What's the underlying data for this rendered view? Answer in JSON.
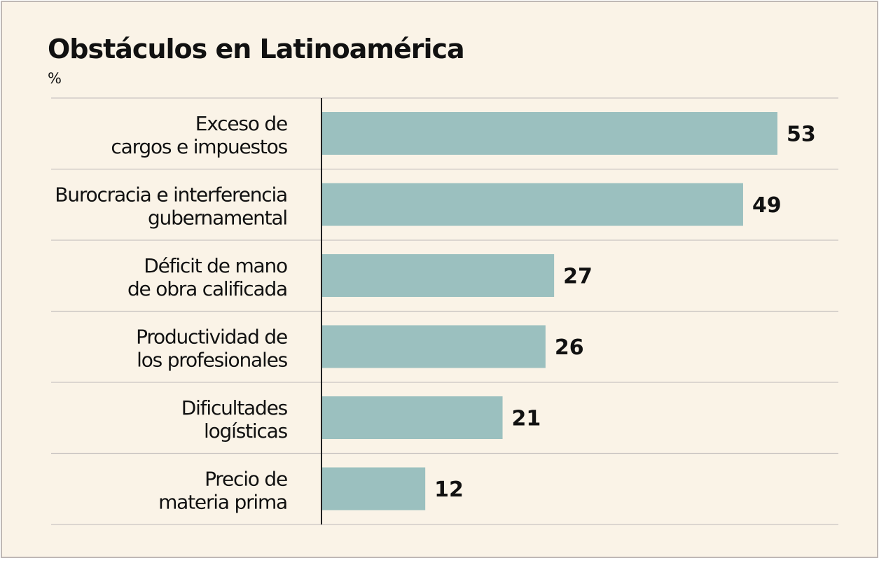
{
  "title": "Obstáculos en Latinoamérica",
  "unit": "%",
  "colors": {
    "bar": "#9bc0bf",
    "background": "#faf3e7",
    "grid": "#c9c4c2",
    "axis": "#222222"
  },
  "chart_data": {
    "type": "bar",
    "orientation": "horizontal",
    "title": "Obstáculos en Latinoamérica",
    "ylabel": "%",
    "categories": [
      [
        "Exceso de",
        "cargos e impuestos"
      ],
      [
        "Burocracia e interferencia",
        "gubernamental"
      ],
      [
        "Déficit de mano",
        "de obra calificada"
      ],
      [
        "Productividad de",
        "los profesionales"
      ],
      [
        "Dificultades",
        "logísticas"
      ],
      [
        "Precio de",
        "materia prima"
      ]
    ],
    "values": [
      53,
      49,
      27,
      26,
      21,
      12
    ],
    "xlim": [
      0,
      53
    ]
  }
}
